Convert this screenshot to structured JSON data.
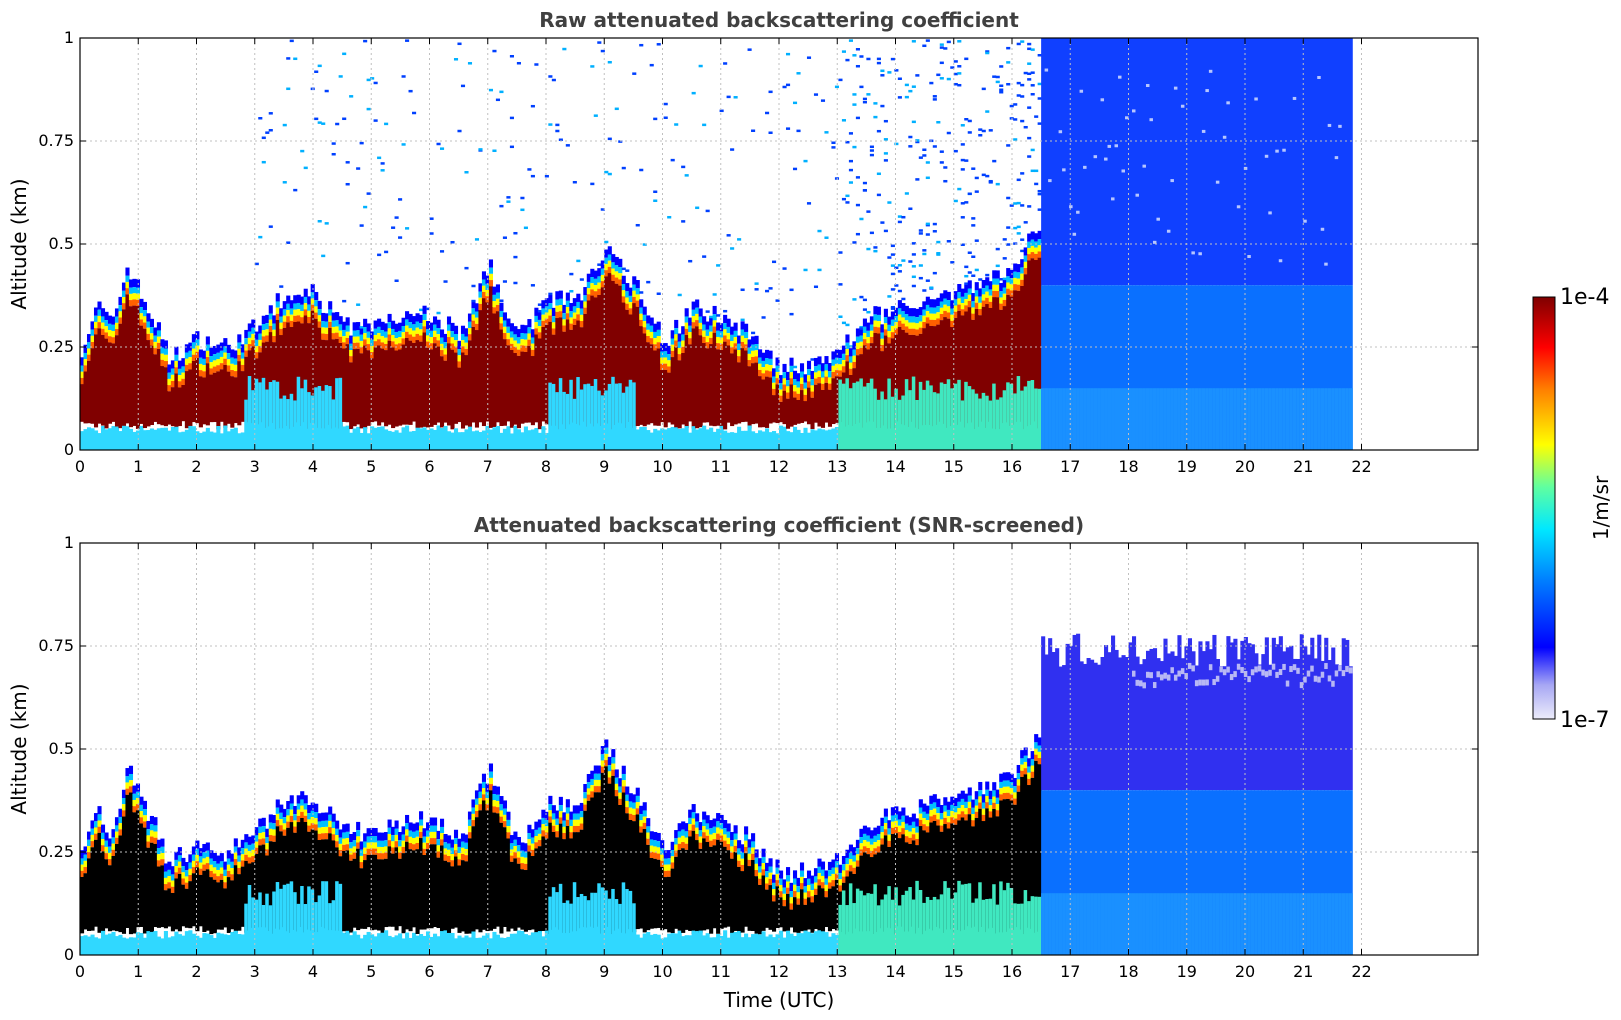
{
  "chart_data": [
    {
      "type": "heatmap",
      "title": "Raw attenuated backscattering coefficient",
      "xlabel": "",
      "ylabel": "Altitude (km)",
      "xlim": [
        0,
        24
      ],
      "ylim": [
        0,
        1
      ],
      "x_ticks": [
        "0",
        "1",
        "2",
        "3",
        "4",
        "5",
        "6",
        "7",
        "8",
        "9",
        "10",
        "11",
        "12",
        "13",
        "14",
        "15",
        "16",
        "17",
        "18",
        "19",
        "20",
        "21",
        "22"
      ],
      "y_ticks": [
        "0",
        "0.25",
        "0.5",
        "0.75",
        "1"
      ],
      "grid": true,
      "data_end_time": 21.8,
      "layer_top_km": {
        "time": [
          0,
          0.3,
          0.5,
          0.8,
          1,
          1.3,
          1.5,
          2,
          2.5,
          3,
          3.5,
          4,
          4.5,
          5,
          6,
          6.5,
          7,
          7.5,
          8,
          8.5,
          9,
          9.5,
          10,
          10.5,
          11,
          11.5,
          12,
          12.5,
          13,
          13.5,
          14,
          14.5,
          15,
          15.5,
          16,
          16.5
        ],
        "top": [
          0.25,
          0.35,
          0.3,
          0.45,
          0.38,
          0.3,
          0.22,
          0.27,
          0.25,
          0.3,
          0.38,
          0.38,
          0.3,
          0.3,
          0.33,
          0.28,
          0.45,
          0.27,
          0.37,
          0.36,
          0.5,
          0.4,
          0.26,
          0.35,
          0.32,
          0.28,
          0.2,
          0.2,
          0.24,
          0.32,
          0.34,
          0.36,
          0.38,
          0.4,
          0.45,
          0.55
        ]
      }
    },
    {
      "type": "heatmap",
      "title": "Attenuated backscattering coefficient (SNR-screened)",
      "xlabel": "Time (UTC)",
      "ylabel": "Altitude (km)",
      "xlim": [
        0,
        24
      ],
      "ylim": [
        0,
        1
      ],
      "x_ticks": [
        "0",
        "1",
        "2",
        "3",
        "4",
        "5",
        "6",
        "7",
        "8",
        "9",
        "10",
        "11",
        "12",
        "13",
        "14",
        "15",
        "16",
        "17",
        "18",
        "19",
        "20",
        "21",
        "22"
      ],
      "y_ticks": [
        "0",
        "0.25",
        "0.5",
        "0.75",
        "1"
      ],
      "grid": true,
      "data_end_time": 21.8
    }
  ],
  "colorbar": {
    "label": "1/m/sr",
    "max_label": "1e-4",
    "min_label": "1e-7",
    "scale": "log",
    "colormap": "jet",
    "colors": [
      "#ececf8",
      "#b0b0f0",
      "#0000ff",
      "#0080ff",
      "#00e0ff",
      "#40ff c0",
      "#c0ff40",
      "#ffff00",
      "#ff8000",
      "#ff0000",
      "#7f0000"
    ]
  },
  "colors": {
    "saturated_raw": "#800000",
    "saturated_screened": "#000000",
    "grid": "#c0c0c0"
  }
}
